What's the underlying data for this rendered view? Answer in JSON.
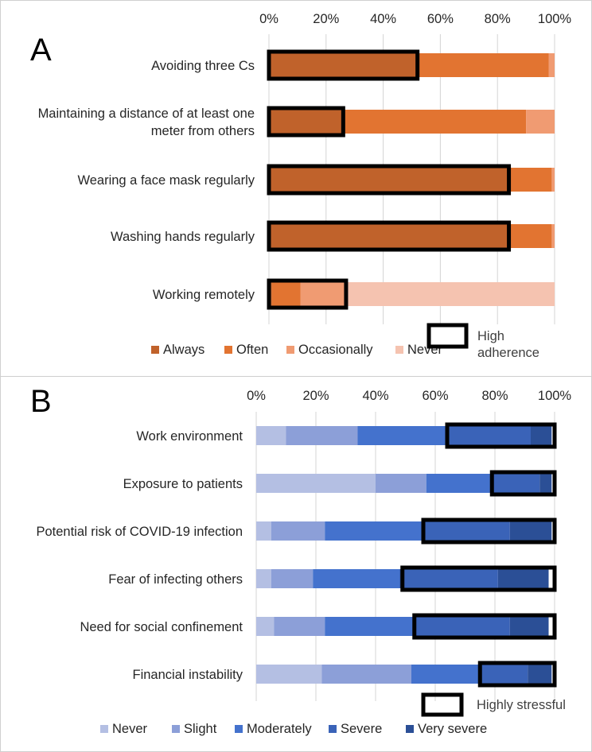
{
  "chart_data": [
    {
      "type": "bar",
      "stacked": true,
      "orientation": "horizontal",
      "panel_label": "A",
      "xlim": [
        0,
        100
      ],
      "x_ticks": [
        "0%",
        "20%",
        "40%",
        "60%",
        "80%",
        "100%"
      ],
      "categories": [
        [
          "Avoiding three Cs"
        ],
        [
          "Maintaining a distance of at least one",
          "meter from others"
        ],
        [
          "Wearing a face mask regularly"
        ],
        [
          "Washing hands regularly"
        ],
        [
          "Working remotely"
        ]
      ],
      "series": [
        {
          "name": "Always",
          "color": "#c0622b",
          "values": [
            52,
            26,
            84,
            84,
            1
          ]
        },
        {
          "name": "Often",
          "color": "#e27431",
          "values": [
            46,
            64,
            15,
            15,
            10
          ]
        },
        {
          "name": "Occasionally",
          "color": "#f09b72",
          "values": [
            2,
            10,
            1,
            1,
            16
          ]
        },
        {
          "name": "Never",
          "color": "#f5c3b0",
          "values": [
            0,
            0,
            0,
            0,
            73
          ]
        }
      ],
      "highlight": {
        "name_lines": [
          "High",
          "adherence"
        ],
        "ranges": [
          [
            0,
            52
          ],
          [
            0,
            26
          ],
          [
            0,
            84
          ],
          [
            0,
            84
          ],
          [
            0,
            27
          ]
        ]
      },
      "legend": "bottom"
    },
    {
      "type": "bar",
      "stacked": true,
      "orientation": "horizontal",
      "panel_label": "B",
      "xlim": [
        0,
        100
      ],
      "x_ticks": [
        "0%",
        "20%",
        "40%",
        "60%",
        "80%",
        "100%"
      ],
      "categories": [
        [
          "Work environment"
        ],
        [
          "Exposure to patients"
        ],
        [
          "Potential risk of COVID-19 infection"
        ],
        [
          "Fear of infecting others"
        ],
        [
          "Need for social confinement"
        ],
        [
          "Financial instability"
        ]
      ],
      "series": [
        {
          "name": "Never",
          "color": "#b4bfe3",
          "values": [
            10,
            40,
            5,
            5,
            6,
            22
          ]
        },
        {
          "name": "Slight",
          "color": "#8c9fd8",
          "values": [
            24,
            17,
            18,
            14,
            17,
            30
          ]
        },
        {
          "name": "Moderately",
          "color": "#4472cd",
          "values": [
            30,
            22,
            33,
            29,
            30,
            23
          ]
        },
        {
          "name": "Severe",
          "color": "#3a63b8",
          "values": [
            28,
            16,
            29,
            33,
            32,
            16
          ]
        },
        {
          "name": "Very severe",
          "color": "#2b4f96",
          "values": [
            7,
            4,
            14,
            17,
            13,
            8
          ]
        }
      ],
      "highlight": {
        "name_lines": [
          "Highly stressful"
        ],
        "ranges": [
          [
            64,
            100
          ],
          [
            79,
            100
          ],
          [
            56,
            100
          ],
          [
            49,
            100
          ],
          [
            53,
            100
          ],
          [
            75,
            100
          ]
        ]
      },
      "legend": "bottom"
    }
  ]
}
